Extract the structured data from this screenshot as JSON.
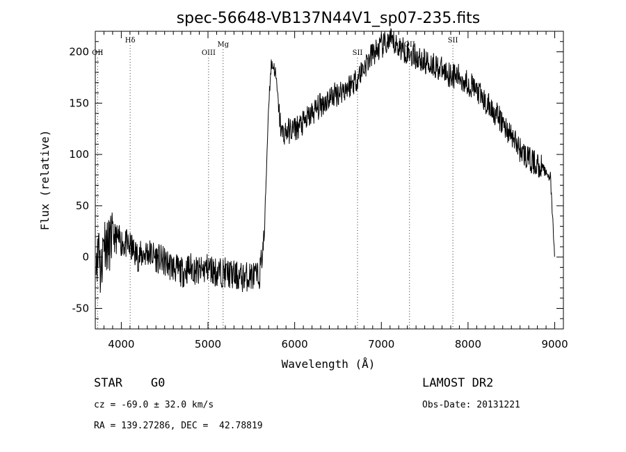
{
  "chart_data": {
    "type": "line",
    "title": "spec-56648-VB137N44V1_sp07-235.fits",
    "xlabel": "Wavelength (Å)",
    "ylabel": "Flux (relative)",
    "xlim": [
      3700,
      9100
    ],
    "ylim": [
      -70,
      220
    ],
    "xticks": [
      4000,
      5000,
      6000,
      7000,
      8000,
      9000
    ],
    "yticks": [
      -50,
      0,
      50,
      100,
      150,
      200
    ],
    "grid": false,
    "spectral_lines": [
      {
        "name": "OII",
        "x": 3727
      },
      {
        "name": "Hδ",
        "x": 4102
      },
      {
        "name": "OIII",
        "x": 5007
      },
      {
        "name": "Mg",
        "x": 5175
      },
      {
        "name": "SII",
        "x": 6725
      },
      {
        "name": "OII",
        "x": 7325
      },
      {
        "name": "SII",
        "x": 7825
      }
    ],
    "series": [
      {
        "line_color": "#000000",
        "x": [
          3710,
          3730,
          3740,
          3760,
          3800,
          3850,
          3900,
          4000,
          4100,
          4200,
          4300,
          4400,
          4500,
          4600,
          4700,
          4800,
          4900,
          5000,
          5100,
          5200,
          5300,
          5400,
          5500,
          5580,
          5600,
          5650,
          5680,
          5700,
          5730,
          5760,
          5780,
          5800,
          5820,
          5850,
          5900,
          6000,
          6100,
          6200,
          6300,
          6400,
          6500,
          6600,
          6700,
          6800,
          6900,
          7000,
          7100,
          7200,
          7300,
          7400,
          7500,
          7600,
          7700,
          7800,
          7900,
          8000,
          8100,
          8200,
          8300,
          8400,
          8500,
          8600,
          8700,
          8800,
          8850,
          8900,
          8950,
          8980,
          9000
        ],
        "y": [
          10,
          -5,
          30,
          -20,
          20,
          10,
          20,
          15,
          10,
          0,
          5,
          0,
          -5,
          -10,
          -15,
          -10,
          -15,
          -10,
          -15,
          -15,
          -18,
          -20,
          -18,
          -20,
          -15,
          20,
          100,
          150,
          188,
          185,
          178,
          160,
          140,
          120,
          122,
          125,
          130,
          140,
          148,
          155,
          160,
          165,
          172,
          185,
          198,
          205,
          210,
          205,
          200,
          195,
          190,
          188,
          182,
          178,
          175,
          170,
          162,
          150,
          142,
          130,
          118,
          105,
          95,
          90,
          88,
          82,
          78,
          30,
          0
        ]
      }
    ]
  },
  "info": {
    "object_type": "STAR    G0",
    "survey": "LAMOST DR2",
    "velocity": "cz = -69.0 ± 32.0 km/s",
    "obs_date": "Obs-Date: 20131221",
    "coords": "RA = 139.27286, DEC =  42.78819"
  }
}
